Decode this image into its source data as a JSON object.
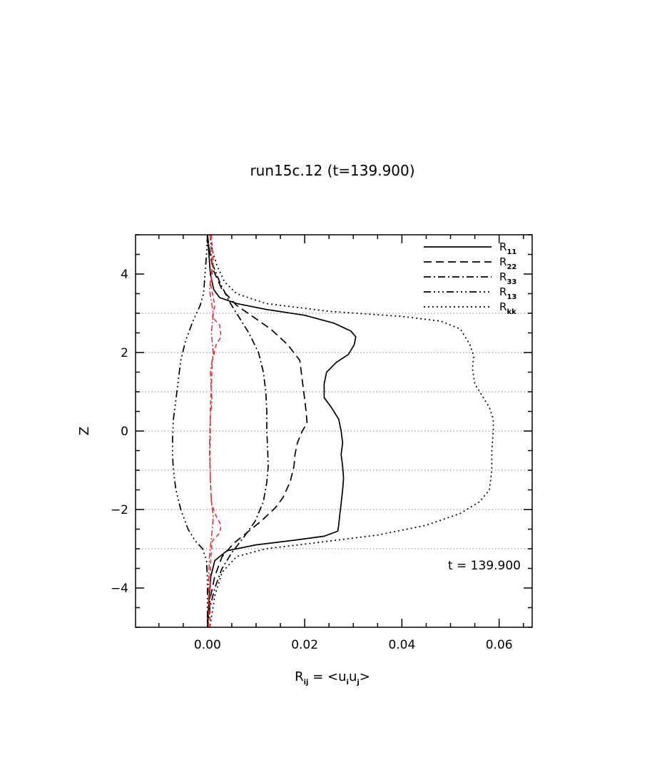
{
  "chart_data": {
    "type": "line",
    "title": "run15c.12 (t=139.900)",
    "xlabel": {
      "base": "R",
      "base_sub": "ij",
      "eq": " = <u",
      "u1_sub": "i",
      "mid": "u",
      "u2_sub": "j",
      "close": ">"
    },
    "ylabel": "Z",
    "xlim": [
      -0.0148,
      0.0668
    ],
    "ylim": [
      -5,
      5
    ],
    "xticks": [
      {
        "value": 0.0,
        "label": "0.00"
      },
      {
        "value": 0.02,
        "label": "0.02"
      },
      {
        "value": 0.04,
        "label": "0.04"
      },
      {
        "value": 0.06,
        "label": "0.06"
      }
    ],
    "yticks": [
      {
        "value": 4,
        "label": "4"
      },
      {
        "value": 2,
        "label": "2"
      },
      {
        "value": 0,
        "label": "0"
      },
      {
        "value": -2,
        "label": "−2"
      },
      {
        "value": -4,
        "label": "−4"
      }
    ],
    "hgrid": [
      3,
      2,
      1,
      0,
      -1,
      -2,
      -3
    ],
    "annotation": "t = 139.900",
    "legend_position": "top-right",
    "series": [
      {
        "name": "R",
        "sub": "11",
        "dash": "none",
        "color": "#000000",
        "points": [
          [
            0.0,
            5
          ],
          [
            0.0003,
            4.5
          ],
          [
            0.0006,
            4.0
          ],
          [
            0.0013,
            3.6
          ],
          [
            0.0025,
            3.4
          ],
          [
            0.006,
            3.25
          ],
          [
            0.012,
            3.1
          ],
          [
            0.02,
            2.95
          ],
          [
            0.026,
            2.75
          ],
          [
            0.0295,
            2.55
          ],
          [
            0.0305,
            2.4
          ],
          [
            0.0302,
            2.2
          ],
          [
            0.029,
            1.95
          ],
          [
            0.0265,
            1.75
          ],
          [
            0.0245,
            1.5
          ],
          [
            0.024,
            1.2
          ],
          [
            0.024,
            0.85
          ],
          [
            0.0255,
            0.6
          ],
          [
            0.027,
            0.3
          ],
          [
            0.0275,
            0.0
          ],
          [
            0.0278,
            -0.3
          ],
          [
            0.0275,
            -0.6
          ],
          [
            0.0278,
            -0.9
          ],
          [
            0.028,
            -1.2
          ],
          [
            0.0278,
            -1.5
          ],
          [
            0.0275,
            -1.85
          ],
          [
            0.0272,
            -2.15
          ],
          [
            0.027,
            -2.4
          ],
          [
            0.0268,
            -2.55
          ],
          [
            0.024,
            -2.68
          ],
          [
            0.018,
            -2.78
          ],
          [
            0.01,
            -2.9
          ],
          [
            0.004,
            -3.05
          ],
          [
            0.0015,
            -3.3
          ],
          [
            0.0007,
            -3.7
          ],
          [
            0.0003,
            -4.3
          ],
          [
            0.0,
            -5
          ]
        ]
      },
      {
        "name": "R",
        "sub": "22",
        "dash": "11 6",
        "color": "#000000",
        "points": [
          [
            0.0,
            5
          ],
          [
            0.0004,
            4.6
          ],
          [
            0.0012,
            4.1
          ],
          [
            0.003,
            3.6
          ],
          [
            0.006,
            3.2
          ],
          [
            0.0095,
            2.9
          ],
          [
            0.013,
            2.6
          ],
          [
            0.0165,
            2.2
          ],
          [
            0.019,
            1.8
          ],
          [
            0.0195,
            1.3
          ],
          [
            0.0198,
            1.0
          ],
          [
            0.0202,
            0.6
          ],
          [
            0.0205,
            0.2
          ],
          [
            0.0195,
            0.0
          ],
          [
            0.0185,
            -0.3
          ],
          [
            0.018,
            -0.6
          ],
          [
            0.0178,
            -0.9
          ],
          [
            0.017,
            -1.3
          ],
          [
            0.0155,
            -1.7
          ],
          [
            0.014,
            -1.95
          ],
          [
            0.011,
            -2.3
          ],
          [
            0.008,
            -2.6
          ],
          [
            0.0055,
            -2.85
          ],
          [
            0.003,
            -3.2
          ],
          [
            0.0015,
            -3.7
          ],
          [
            0.0005,
            -4.3
          ],
          [
            0.0,
            -5
          ]
        ]
      },
      {
        "name": "R",
        "sub": "33",
        "dash": "10 4 2 4",
        "color": "#000000",
        "points": [
          [
            0.0,
            5
          ],
          [
            0.0004,
            4.6
          ],
          [
            0.0012,
            4.2
          ],
          [
            0.0025,
            3.8
          ],
          [
            0.0045,
            3.3
          ],
          [
            0.0065,
            2.9
          ],
          [
            0.0085,
            2.5
          ],
          [
            0.0105,
            2.0
          ],
          [
            0.0115,
            1.5
          ],
          [
            0.012,
            1.0
          ],
          [
            0.0122,
            0.5
          ],
          [
            0.0122,
            0.0
          ],
          [
            0.0124,
            -0.5
          ],
          [
            0.0125,
            -0.9
          ],
          [
            0.0122,
            -1.3
          ],
          [
            0.0115,
            -1.8
          ],
          [
            0.0098,
            -2.3
          ],
          [
            0.0075,
            -2.7
          ],
          [
            0.005,
            -3.1
          ],
          [
            0.003,
            -3.5
          ],
          [
            0.0015,
            -4.0
          ],
          [
            0.0005,
            -4.5
          ],
          [
            0.0,
            -5
          ]
        ]
      },
      {
        "name": "R",
        "sub": "13",
        "dash": "10 4 2 4 2 4 2 4",
        "color": "#000000",
        "points": [
          [
            0.0,
            5
          ],
          [
            -0.0002,
            4.5
          ],
          [
            -0.0005,
            4.0
          ],
          [
            -0.0008,
            3.5
          ],
          [
            -0.0015,
            3.2
          ],
          [
            -0.003,
            2.8
          ],
          [
            -0.0045,
            2.3
          ],
          [
            -0.0055,
            1.8
          ],
          [
            -0.006,
            1.3
          ],
          [
            -0.0065,
            0.8
          ],
          [
            -0.007,
            0.3
          ],
          [
            -0.0072,
            -0.2
          ],
          [
            -0.0072,
            -0.6
          ],
          [
            -0.007,
            -1.0
          ],
          [
            -0.0065,
            -1.5
          ],
          [
            -0.0055,
            -2.0
          ],
          [
            -0.004,
            -2.5
          ],
          [
            -0.0025,
            -2.8
          ],
          [
            -0.001,
            -3.0
          ],
          [
            -0.0002,
            -3.3
          ],
          [
            0.0,
            -3.8
          ],
          [
            0.0,
            -5
          ]
        ]
      },
      {
        "name": "R",
        "sub": "kk",
        "dash": "2 4",
        "color": "#000000",
        "points": [
          [
            0.0005,
            5
          ],
          [
            0.001,
            4.6
          ],
          [
            0.002,
            4.2
          ],
          [
            0.0035,
            3.8
          ],
          [
            0.006,
            3.5
          ],
          [
            0.012,
            3.25
          ],
          [
            0.025,
            3.05
          ],
          [
            0.04,
            2.92
          ],
          [
            0.048,
            2.8
          ],
          [
            0.052,
            2.6
          ],
          [
            0.054,
            2.2
          ],
          [
            0.0548,
            1.9
          ],
          [
            0.0545,
            1.6
          ],
          [
            0.055,
            1.2
          ],
          [
            0.0565,
            0.9
          ],
          [
            0.058,
            0.6
          ],
          [
            0.0588,
            0.3
          ],
          [
            0.0588,
            0.0
          ],
          [
            0.0585,
            -0.5
          ],
          [
            0.0585,
            -1.0
          ],
          [
            0.058,
            -1.5
          ],
          [
            0.056,
            -1.8
          ],
          [
            0.052,
            -2.1
          ],
          [
            0.045,
            -2.4
          ],
          [
            0.035,
            -2.65
          ],
          [
            0.022,
            -2.85
          ],
          [
            0.012,
            -3.0
          ],
          [
            0.006,
            -3.2
          ],
          [
            0.003,
            -3.6
          ],
          [
            0.0015,
            -4.2
          ],
          [
            0.0005,
            -5
          ]
        ]
      },
      {
        "name": "",
        "sub": "",
        "dash": "6 4",
        "color": "#e32b2b",
        "points": [
          [
            0.0008,
            5
          ],
          [
            0.0012,
            4.3
          ],
          [
            0.0007,
            3.7
          ],
          [
            0.0015,
            3.2
          ],
          [
            0.001,
            2.9
          ],
          [
            0.0025,
            2.7
          ],
          [
            0.0028,
            2.4
          ],
          [
            0.0018,
            2.2
          ],
          [
            0.001,
            1.8
          ],
          [
            0.0008,
            1.2
          ],
          [
            0.0006,
            0.6
          ],
          [
            0.0006,
            0.0
          ],
          [
            0.0005,
            -0.6
          ],
          [
            0.0006,
            -1.2
          ],
          [
            0.0008,
            -1.8
          ],
          [
            0.0015,
            -2.1
          ],
          [
            0.0028,
            -2.4
          ],
          [
            0.0025,
            -2.6
          ],
          [
            0.001,
            -2.8
          ],
          [
            0.0007,
            -3.2
          ],
          [
            0.0005,
            -4.0
          ],
          [
            0.0005,
            -5
          ]
        ]
      },
      {
        "name": "",
        "sub": "",
        "dash": "8 3 2 3",
        "color": "#e32b2b",
        "points": [
          [
            0.0005,
            5
          ],
          [
            0.001,
            4.2
          ],
          [
            0.0004,
            3.6
          ],
          [
            0.0012,
            3.0
          ],
          [
            0.0008,
            2.5
          ],
          [
            0.0012,
            2.0
          ],
          [
            0.0006,
            1.5
          ],
          [
            0.0009,
            0.8
          ],
          [
            0.0005,
            0.2
          ],
          [
            0.0004,
            -0.5
          ],
          [
            0.0006,
            -1.2
          ],
          [
            0.0008,
            -1.8
          ],
          [
            0.0012,
            -2.2
          ],
          [
            0.0009,
            -2.6
          ],
          [
            0.0004,
            -3.2
          ],
          [
            0.0002,
            -4.0
          ],
          [
            0.0002,
            -5
          ]
        ]
      }
    ]
  }
}
